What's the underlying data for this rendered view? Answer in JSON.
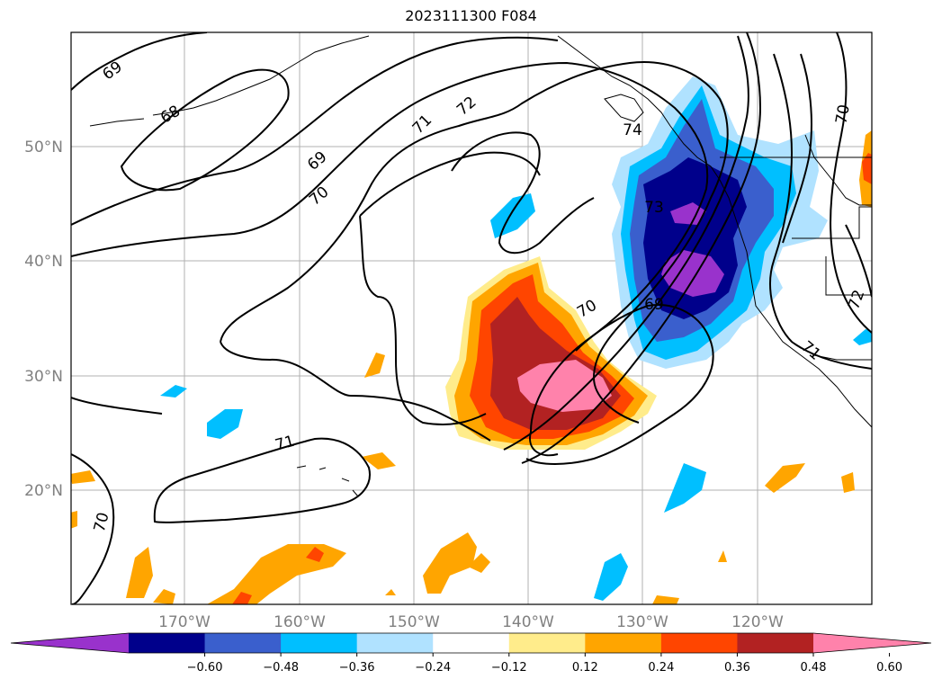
{
  "title": "2023111300 F084",
  "map": {
    "lat_labels": [
      "50°N",
      "40°N",
      "30°N",
      "20°N"
    ],
    "lon_labels": [
      "170°W",
      "160°W",
      "150°W",
      "140°W",
      "130°W",
      "120°W"
    ],
    "contour_labels": [
      "69",
      "68",
      "69",
      "70",
      "71",
      "72",
      "70",
      "71",
      "73",
      "70",
      "69",
      "74",
      "70",
      "72",
      "71"
    ]
  },
  "colorbar": {
    "ticks": [
      "−0.60",
      "−0.48",
      "−0.36",
      "−0.24",
      "−0.12",
      "0.12",
      "0.24",
      "0.36",
      "0.48",
      "0.60"
    ],
    "colors": [
      "#9932cc",
      "#00008b",
      "#3a5fcd",
      "#00bfff",
      "#b0e2ff",
      "#ffffff",
      "#ffec8b",
      "#ffa500",
      "#ff4500",
      "#b22222",
      "#ff82ab"
    ]
  }
}
